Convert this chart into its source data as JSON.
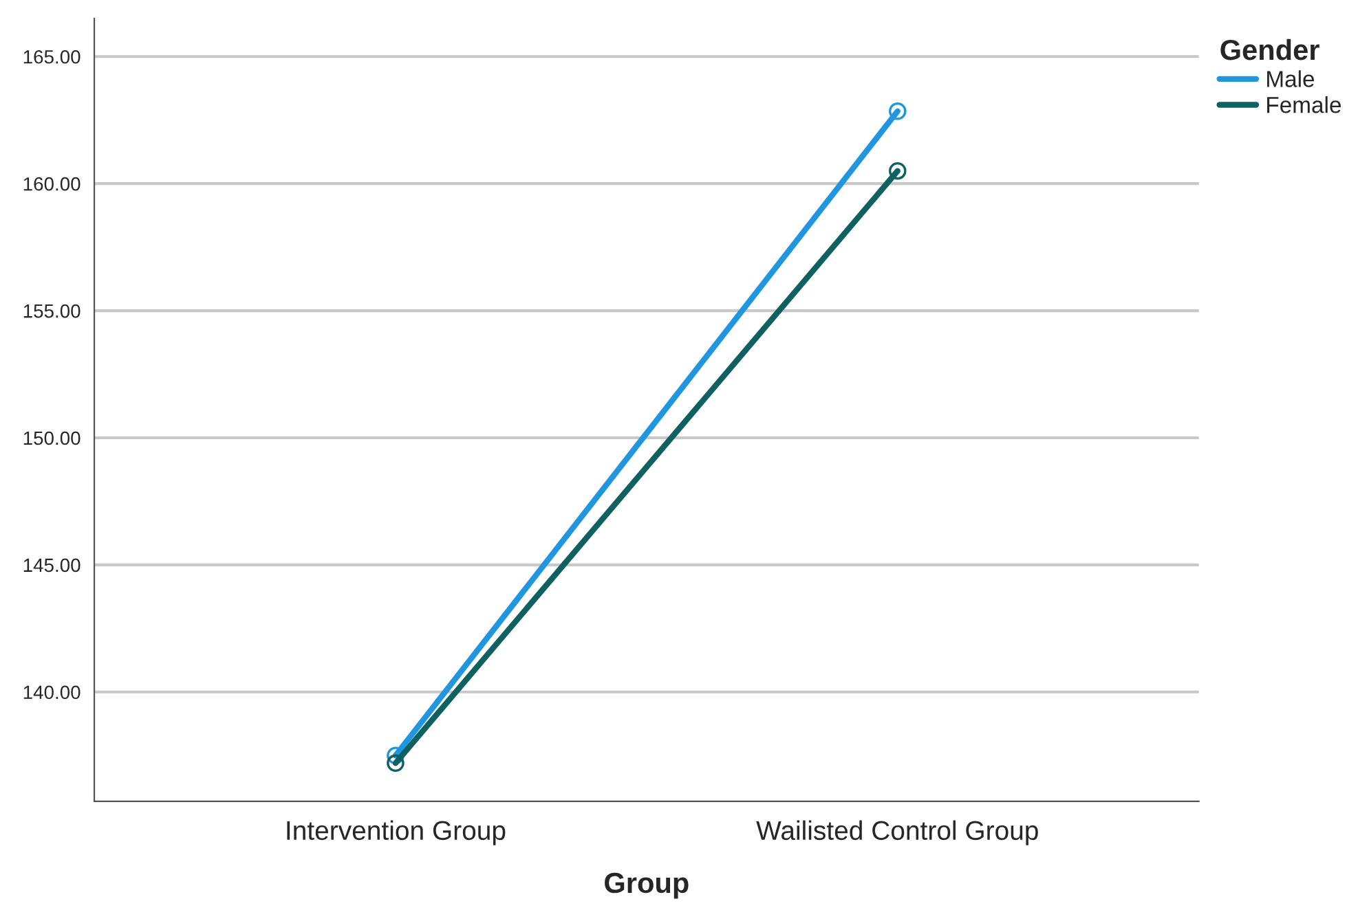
{
  "chart_data": {
    "type": "line",
    "xlabel": "Group",
    "legend_title": "Gender",
    "categories": [
      "Intervention Group",
      "Wailisted Control Group"
    ],
    "series": [
      {
        "name": "Male",
        "color": "#2196e0",
        "values": [
          137.5,
          162.85
        ]
      },
      {
        "name": "Female",
        "color": "#0f6060",
        "values": [
          137.2,
          160.5
        ]
      }
    ],
    "ylim": [
      135.7,
      166.5
    ],
    "yticks": [
      {
        "value": 140,
        "label": "140.00"
      },
      {
        "value": 145,
        "label": "145.00"
      },
      {
        "value": 150,
        "label": "150.00"
      },
      {
        "value": 155,
        "label": "155.00"
      },
      {
        "value": 160,
        "label": "160.00"
      },
      {
        "value": 165,
        "label": "165.00"
      }
    ],
    "grid": "y",
    "legend": "top right",
    "marker": "circle",
    "line_style": "solid"
  }
}
